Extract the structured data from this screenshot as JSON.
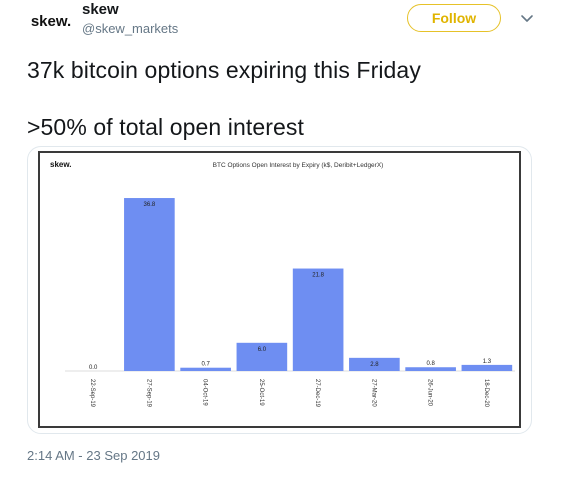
{
  "tweet": {
    "avatar_text": "skew.",
    "display_name": "skew",
    "handle": "@skew_markets",
    "follow_label": "Follow",
    "text_line1": "37k bitcoin options expiring this Friday",
    "text_line2": ">50% of total open interest",
    "timestamp": "2:14 AM - 23 Sep 2019",
    "colors": {
      "follow_accent": "#e6c229",
      "bar": "#6e8ef2"
    },
    "icons": {
      "more": "chevron-down-icon"
    }
  },
  "chart_data": {
    "type": "bar",
    "logo": "skew.",
    "title": "BTC Options Open Interest by Expiry (k$, Deribit+LedgerX)",
    "categories": [
      "22-Sep-19",
      "27-Sep-19",
      "04-Oct-19",
      "25-Oct-19",
      "27-Dec-19",
      "27-Mar-20",
      "26-Jun-20",
      "18-Dec-20"
    ],
    "values": [
      0.0,
      36.8,
      0.7,
      6.0,
      21.8,
      2.8,
      0.8,
      1.3
    ],
    "value_labels": [
      "0.0",
      "36.8",
      "0.7",
      "6.0",
      "21.8",
      "2.8",
      "0.8",
      "1.3"
    ],
    "ylim": [
      0,
      40
    ],
    "grid": false,
    "legend": "none"
  }
}
